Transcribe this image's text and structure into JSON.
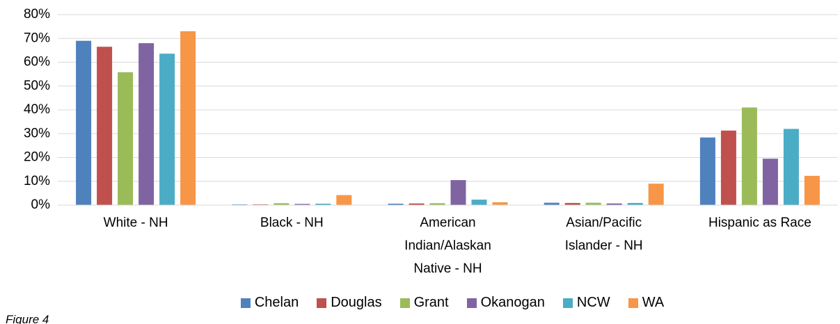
{
  "chart_data": {
    "type": "bar",
    "note": "Figure 4",
    "categories": [
      "White - NH",
      "Black - NH",
      "American Indian/Alaskan Native - NH",
      "Asian/Pacific Islander - NH",
      "Hispanic as Race"
    ],
    "series": [
      {
        "name": "Chelan",
        "color": "#4f81bd",
        "values": [
          69,
          0.3,
          0.6,
          1,
          28.4
        ]
      },
      {
        "name": "Douglas",
        "color": "#c0504d",
        "values": [
          66.5,
          0.3,
          0.7,
          0.9,
          31.3
        ]
      },
      {
        "name": "Grant",
        "color": "#9bbb59",
        "values": [
          55.8,
          0.8,
          0.8,
          1,
          41
        ]
      },
      {
        "name": "Okanogan",
        "color": "#8064a2",
        "values": [
          68,
          0.5,
          10.5,
          0.7,
          19.5
        ]
      },
      {
        "name": "NCW",
        "color": "#4bacc6",
        "values": [
          63.6,
          0.6,
          2.3,
          0.9,
          32
        ]
      },
      {
        "name": "WA",
        "color": "#f79646",
        "values": [
          73,
          4.2,
          1.2,
          9,
          12.3
        ]
      }
    ],
    "ylim": [
      0,
      80
    ],
    "yticks": [
      {
        "value": 0,
        "label": "0%"
      },
      {
        "value": 10,
        "label": "10%"
      },
      {
        "value": 20,
        "label": "20%"
      },
      {
        "value": 30,
        "label": "30%"
      },
      {
        "value": 40,
        "label": "40%"
      },
      {
        "value": 50,
        "label": "50%"
      },
      {
        "value": 60,
        "label": "60%"
      },
      {
        "value": 70,
        "label": "70%"
      },
      {
        "value": 80,
        "label": "80%"
      }
    ],
    "grid": true,
    "legend": "bottom"
  }
}
